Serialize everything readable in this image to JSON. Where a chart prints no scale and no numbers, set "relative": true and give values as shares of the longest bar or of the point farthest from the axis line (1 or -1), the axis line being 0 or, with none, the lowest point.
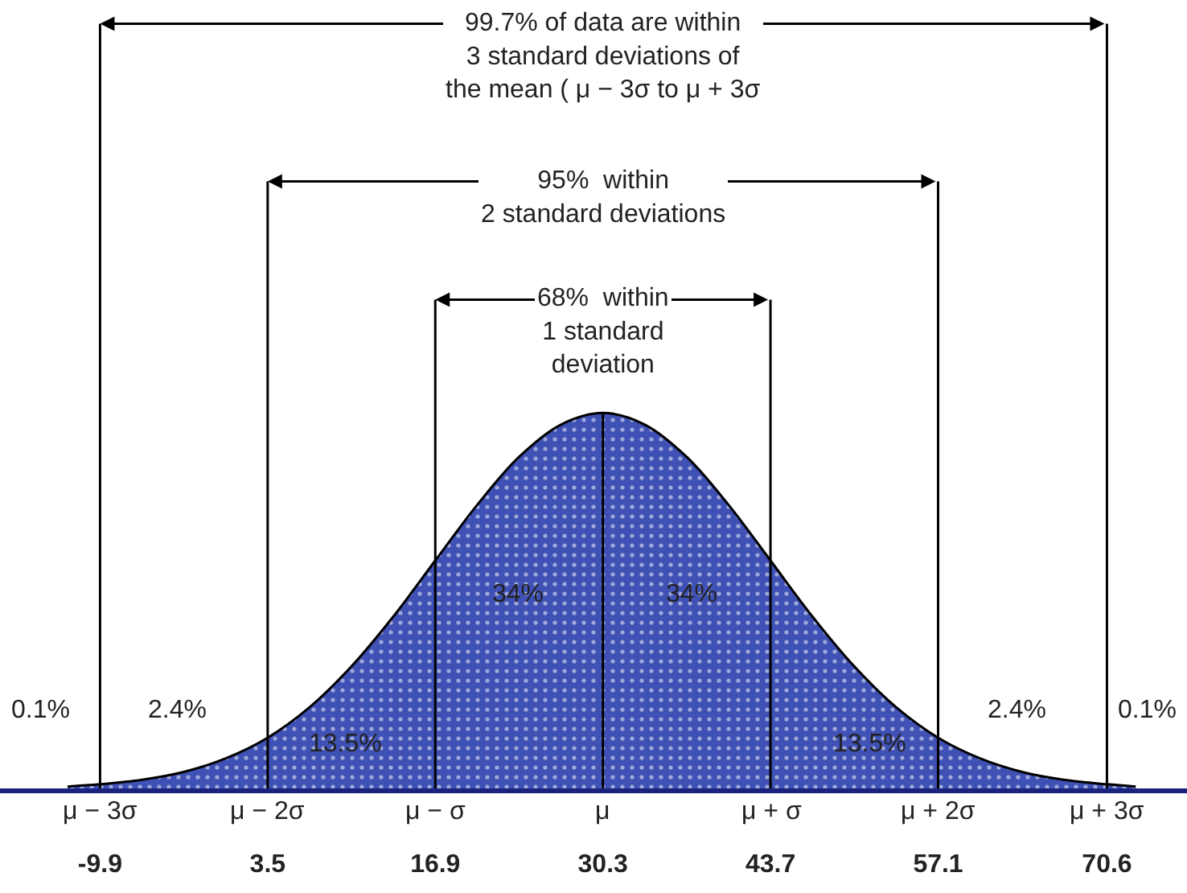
{
  "chart_data": {
    "type": "area",
    "relative": true,
    "color": "#3f51b5",
    "grid": "x",
    "legend": false,
    "x": [
      -12.5,
      -9.9,
      -6.55,
      -3.2,
      0.15,
      3.5,
      6.85,
      10.2,
      13.55,
      16.9,
      20.25,
      23.6,
      26.95,
      30.3,
      33.65,
      37.0,
      40.35,
      43.7,
      47.05,
      50.4,
      53.75,
      57.1,
      60.45,
      63.8,
      67.15,
      70.6,
      72.9
    ],
    "values": [
      0.005,
      0.011,
      0.023,
      0.044,
      0.08,
      0.135,
      0.216,
      0.325,
      0.458,
      0.607,
      0.755,
      0.883,
      0.969,
      1,
      0.969,
      0.883,
      0.755,
      0.607,
      0.458,
      0.325,
      0.216,
      0.135,
      0.08,
      0.044,
      0.023,
      0.011,
      0.005
    ],
    "xlim": [
      -17.9,
      77
    ],
    "xticks": [
      -9.9,
      3.5,
      16.9,
      30.3,
      43.7,
      57.1,
      70.6
    ],
    "annotations": [
      "99.7% of data are within\n3 standard deviations of\nthe mean ( μ − 3σ to μ + 3σ",
      "95%  within\n2 standard deviations",
      "68%  within\n1 standard\ndeviation",
      "μ − 3σ",
      "μ − 2σ",
      "μ − σ",
      "μ",
      "μ + σ",
      "μ + 2σ",
      "μ + 3σ",
      "34%",
      "34%",
      "13.5%",
      "13.5%",
      "2.4%",
      "2.4%",
      "0.1%",
      "0.1%"
    ]
  }
}
